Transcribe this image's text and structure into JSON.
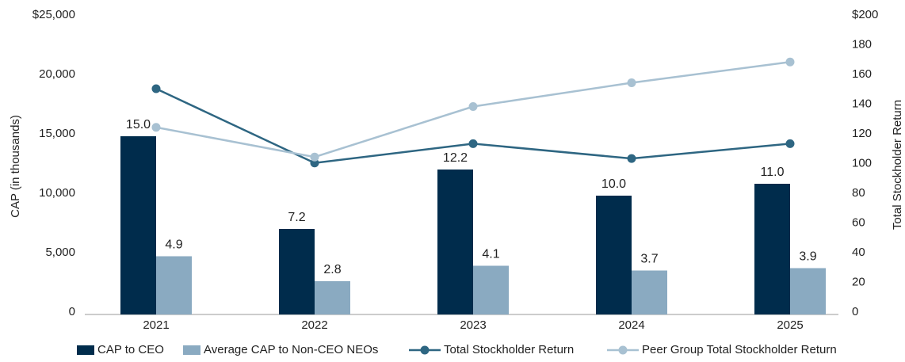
{
  "chart_data": {
    "type": "bar",
    "categories": [
      "2021",
      "2022",
      "2023",
      "2024",
      "2025"
    ],
    "ylabel": "CAP (in thousands)",
    "y2label": "Total Stockholder Return",
    "ylim": [
      0,
      25000
    ],
    "yticks": [
      0,
      {
        "value": 5000,
        "label": "5,000"
      },
      {
        "value": 10000,
        "label": "10,000"
      },
      {
        "value": 15000,
        "label": "15,000"
      },
      {
        "value": 20000,
        "label": "20,000"
      },
      {
        "value": 25000,
        "label": "$25,000"
      }
    ],
    "y2lim": [
      0,
      200
    ],
    "y2ticks": [
      0,
      20,
      40,
      60,
      80,
      100,
      120,
      140,
      160,
      180,
      {
        "value": 200,
        "label": "$200"
      }
    ],
    "series": [
      {
        "name": "CAP to CEO",
        "type": "bar",
        "color": "#002c4c",
        "values": [
          15000,
          7200,
          12200,
          10000,
          11000
        ],
        "value_labels": [
          "15.0",
          "7.2",
          "12.2",
          "10.0",
          "11.0"
        ]
      },
      {
        "name": "Average CAP to Non-CEO NEOs",
        "type": "bar",
        "color": "#8aaac1",
        "values": [
          4900,
          2800,
          4100,
          3700,
          3900
        ],
        "value_labels": [
          "4.9",
          "2.8",
          "4.1",
          "3.7",
          "3.9"
        ]
      },
      {
        "name": "Total Stockholder Return",
        "type": "line",
        "axis": "y2",
        "color": "#2e6682",
        "values": [
          152,
          102,
          115,
          105,
          115
        ]
      },
      {
        "name": "Peer Group Total Stockholder Return",
        "type": "line",
        "axis": "y2",
        "color": "#a8c1d2",
        "values": [
          126,
          106,
          140,
          156,
          170
        ]
      }
    ]
  }
}
